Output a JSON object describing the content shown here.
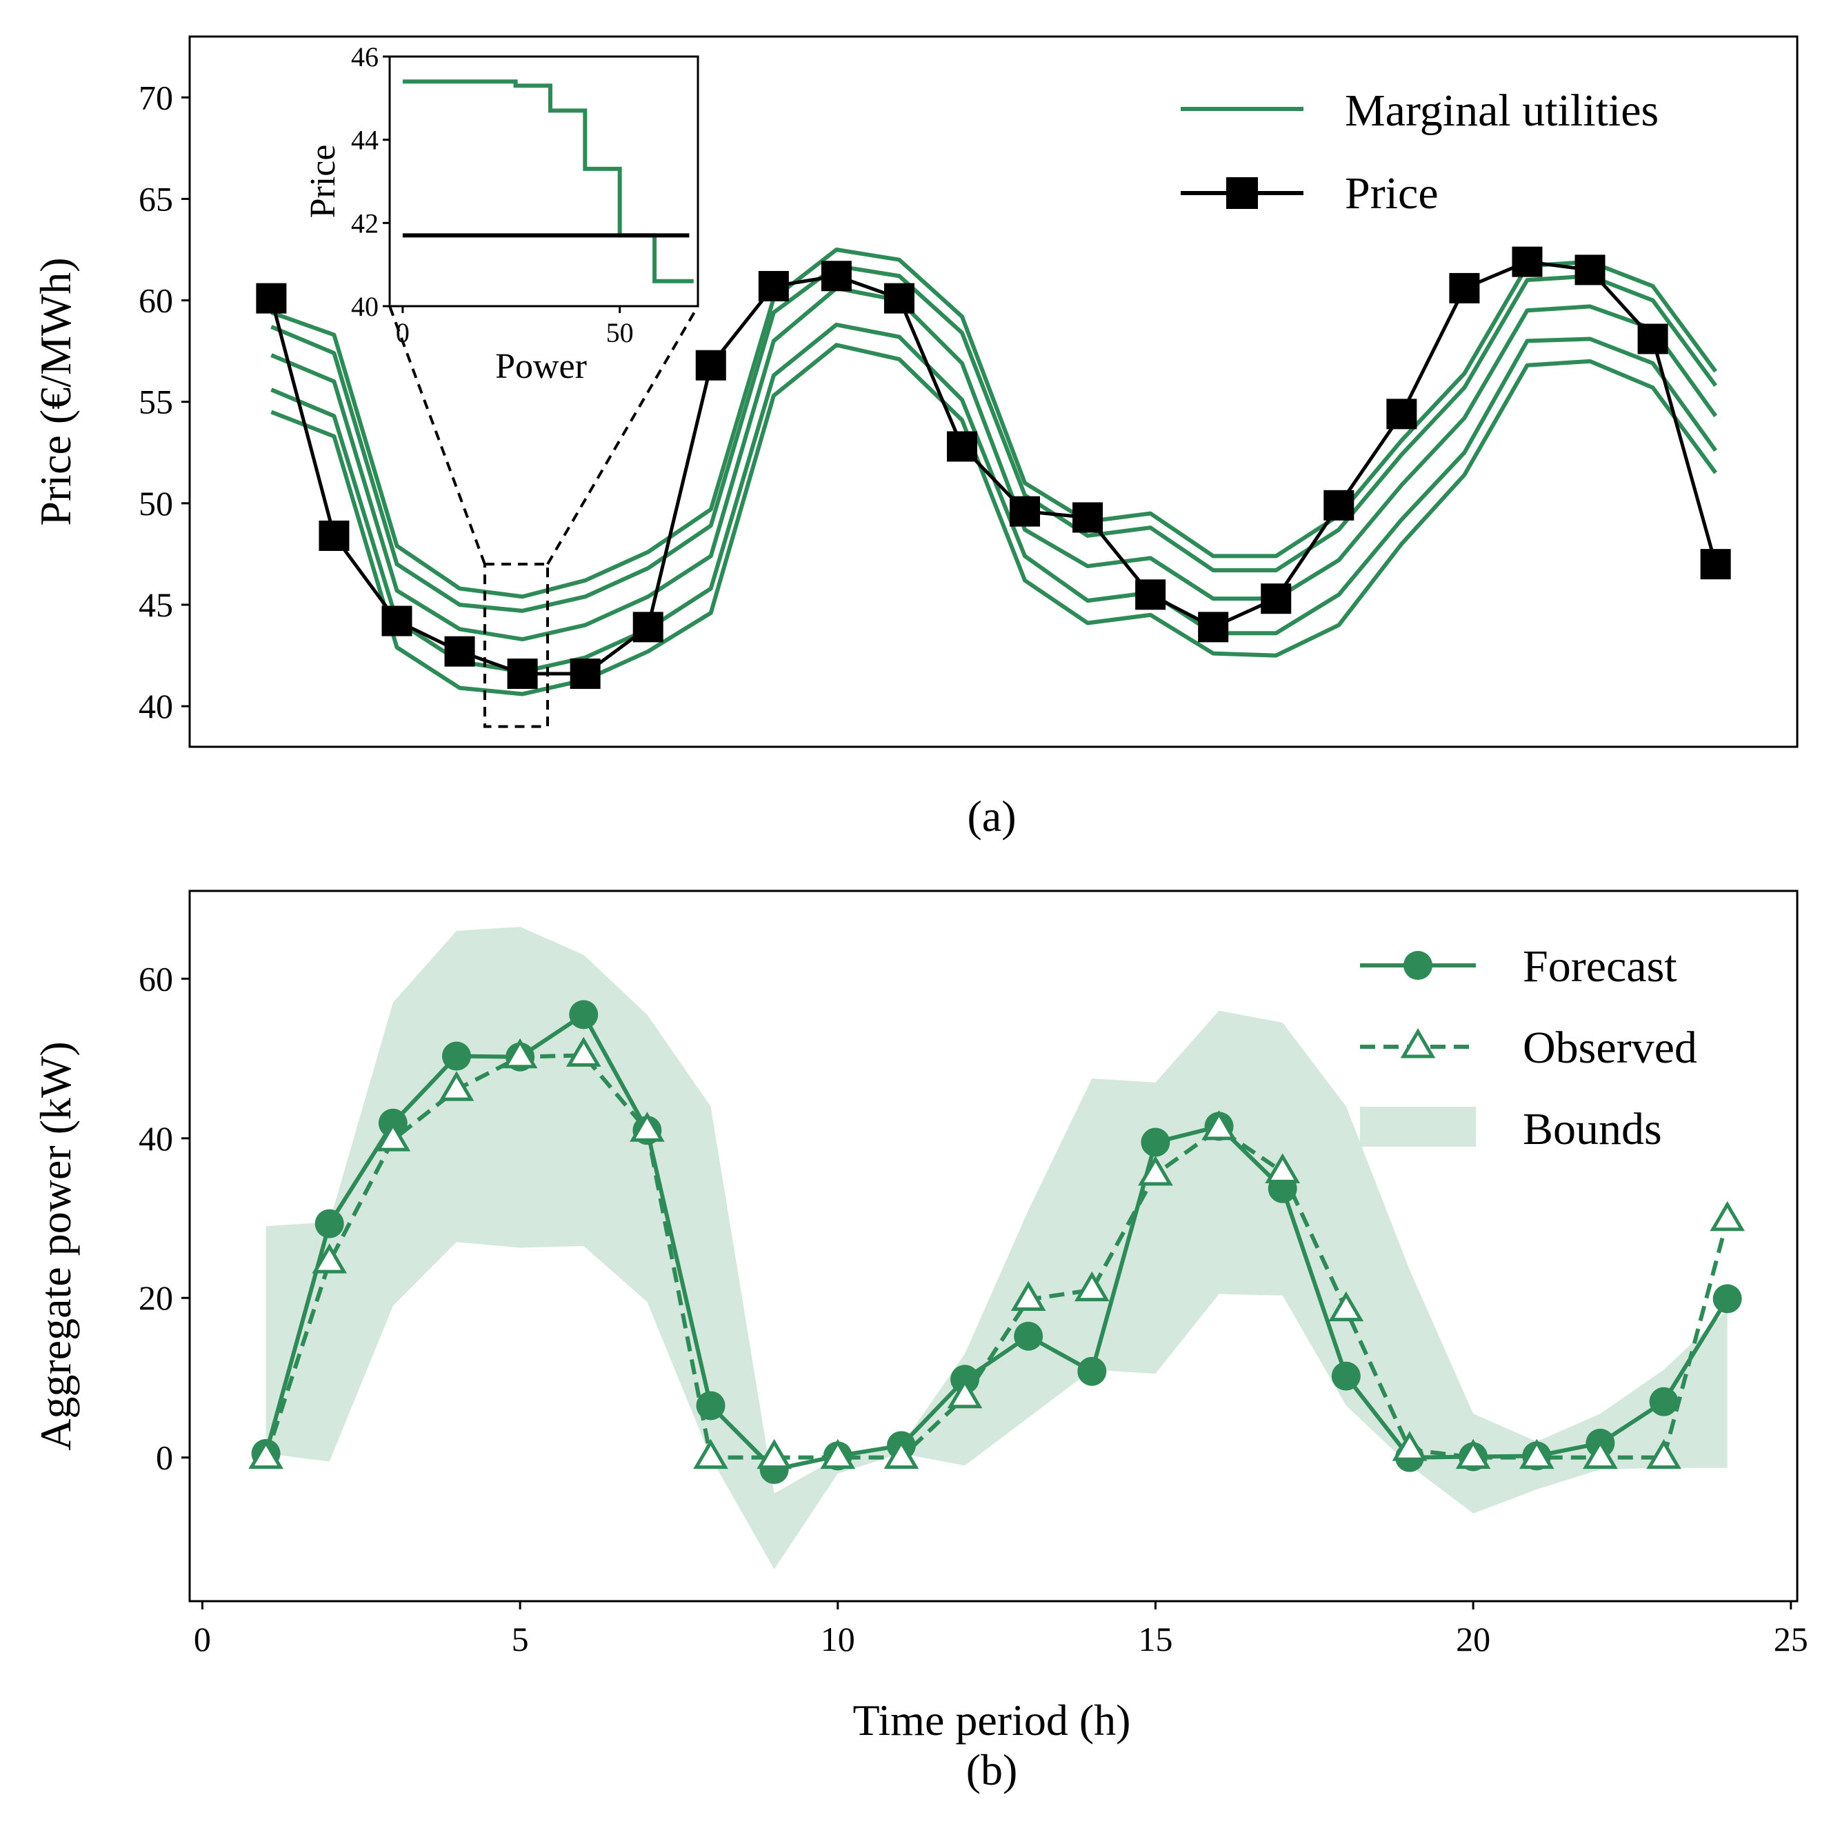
{
  "chart_data": [
    {
      "type": "line",
      "panel": "(a)",
      "xlabel": "",
      "ylabel": "Price (€/MWh)",
      "xlim": [
        -0.3,
        25.3
      ],
      "ylim": [
        38,
        73
      ],
      "yticks": [
        40,
        45,
        50,
        55,
        60,
        65,
        70
      ],
      "grid": false,
      "legend_position": "top-right",
      "legend": [
        "Marginal utilities",
        "Price"
      ],
      "colors": {
        "utilities": "#2e8b57",
        "price": "#000000"
      },
      "x": [
        1,
        2,
        3,
        4,
        5,
        6,
        7,
        8,
        9,
        10,
        11,
        12,
        13,
        14,
        15,
        16,
        17,
        18,
        19,
        20,
        21,
        22,
        23,
        24
      ],
      "series": [
        {
          "name": "Price",
          "marker": "square",
          "values": [
            60.1,
            48.4,
            44.2,
            42.7,
            41.6,
            41.6,
            43.9,
            56.8,
            60.7,
            61.2,
            60.1,
            52.8,
            49.6,
            49.3,
            45.5,
            43.9,
            45.3,
            49.9,
            54.4,
            60.6,
            61.9,
            61.5,
            58.1,
            47.0
          ]
        },
        {
          "name": "Marginal utilities",
          "role": "utility-1",
          "values": [
            59.4,
            58.3,
            47.9,
            45.8,
            45.4,
            46.2,
            47.6,
            49.7,
            60.1,
            62.5,
            62.0,
            59.2,
            51.0,
            49.1,
            49.5,
            47.4,
            47.4,
            49.4,
            53.1,
            56.4,
            61.7,
            61.9,
            60.7,
            56.5
          ]
        },
        {
          "name": "Marginal utilities",
          "role": "utility-2",
          "values": [
            58.7,
            57.4,
            47.0,
            45.0,
            44.7,
            45.4,
            46.8,
            48.9,
            59.4,
            61.7,
            61.2,
            58.4,
            50.4,
            48.4,
            48.8,
            46.7,
            46.7,
            48.7,
            52.4,
            55.7,
            61.0,
            61.2,
            60.0,
            55.8
          ]
        },
        {
          "name": "Marginal utilities",
          "role": "utility-3",
          "values": [
            57.3,
            56.0,
            45.7,
            43.8,
            43.3,
            44.0,
            45.4,
            47.4,
            58.0,
            60.6,
            60.0,
            56.9,
            48.7,
            46.9,
            47.3,
            45.3,
            45.3,
            47.2,
            50.9,
            54.2,
            59.5,
            59.7,
            58.6,
            54.3
          ]
        },
        {
          "name": "Marginal utilities",
          "role": "utility-4",
          "values": [
            55.6,
            54.3,
            44.2,
            42.2,
            41.7,
            42.4,
            43.8,
            45.8,
            56.3,
            58.8,
            58.2,
            55.1,
            47.4,
            45.2,
            45.6,
            43.6,
            43.6,
            45.5,
            49.2,
            52.5,
            58.0,
            58.1,
            56.9,
            52.6
          ]
        },
        {
          "name": "Marginal utilities",
          "role": "utility-5",
          "values": [
            54.5,
            53.3,
            42.9,
            40.9,
            40.6,
            41.3,
            42.7,
            44.6,
            55.3,
            57.8,
            57.1,
            54.1,
            46.2,
            44.1,
            44.5,
            42.6,
            42.5,
            44.0,
            48.0,
            51.4,
            56.8,
            57.0,
            55.7,
            51.5
          ]
        }
      ],
      "zoom_box": {
        "x_range": [
          4.4,
          5.4
        ],
        "y_range": [
          39.0,
          47.0
        ]
      },
      "inset": {
        "type": "step",
        "xlabel": "Power",
        "ylabel": "Price",
        "xlim": [
          -3,
          68
        ],
        "ylim": [
          40,
          46
        ],
        "xticks": [
          0,
          50
        ],
        "yticks": [
          40,
          42,
          44,
          46
        ],
        "series": [
          {
            "name": "Marginal utilities",
            "x": [
              0,
              26,
              26,
              34,
              34,
              42,
              42,
              50,
              50,
              58,
              58,
              67
            ],
            "y": [
              45.4,
              45.4,
              45.3,
              45.3,
              44.7,
              44.7,
              43.3,
              43.3,
              41.7,
              41.7,
              40.6,
              40.6
            ]
          },
          {
            "name": "Price",
            "x": [
              0,
              66
            ],
            "y": [
              41.7,
              41.7
            ]
          }
        ]
      }
    },
    {
      "type": "line",
      "panel": "(b)",
      "xlabel": "Time period (h)",
      "ylabel": "Aggregate power (kW)",
      "xlim": [
        -0.2,
        25.1
      ],
      "ylim": [
        -18,
        71
      ],
      "xticks": [
        0,
        5,
        10,
        15,
        20,
        25
      ],
      "yticks": [
        0,
        20,
        40,
        60
      ],
      "grid": false,
      "legend_position": "top-right",
      "legend": [
        "Forecast",
        "Observed",
        "Bounds"
      ],
      "colors": {
        "forecast": "#2e8b57",
        "observed": "#2e8b57",
        "bounds": "#d5e8dd"
      },
      "x": [
        1,
        2,
        3,
        4,
        5,
        6,
        7,
        8,
        9,
        10,
        11,
        12,
        13,
        14,
        15,
        16,
        17,
        18,
        19,
        20,
        21,
        22,
        23,
        24
      ],
      "series": [
        {
          "name": "Forecast",
          "marker": "circle",
          "values": [
            0.5,
            29.3,
            41.9,
            50.3,
            50.2,
            55.5,
            41.0,
            6.5,
            -1.5,
            0.2,
            1.5,
            9.8,
            15.2,
            10.8,
            39.5,
            41.5,
            33.7,
            10.2,
            0.0,
            0.1,
            0.2,
            1.8,
            7.0,
            19.9
          ]
        },
        {
          "name": "Observed",
          "marker": "triangle",
          "dashed": true,
          "values": [
            0.0,
            24.5,
            39.8,
            46.1,
            50.2,
            50.4,
            41.0,
            0.0,
            0.0,
            0.0,
            0.0,
            7.6,
            19.8,
            21.0,
            35.5,
            41.2,
            35.8,
            18.5,
            1.0,
            0.0,
            0.0,
            0.0,
            0.0,
            29.8
          ]
        }
      ],
      "bounds": {
        "name": "Bounds",
        "upper": [
          29.0,
          29.5,
          57.0,
          66.0,
          66.5,
          63.0,
          55.5,
          44.0,
          -4.5,
          0.0,
          1.5,
          13.0,
          31.0,
          47.5,
          47.0,
          56.0,
          54.5,
          44.0,
          23.5,
          5.5,
          2.0,
          5.5,
          11.0,
          18.5
        ],
        "lower": [
          0.5,
          -0.5,
          19.0,
          27.0,
          26.3,
          26.5,
          19.5,
          0.0,
          -14.0,
          -2.0,
          0.5,
          -1.0,
          5.0,
          11.0,
          10.5,
          20.5,
          20.3,
          6.5,
          -1.0,
          -7.0,
          -4.0,
          -1.5,
          -1.3,
          -1.3
        ]
      }
    }
  ]
}
